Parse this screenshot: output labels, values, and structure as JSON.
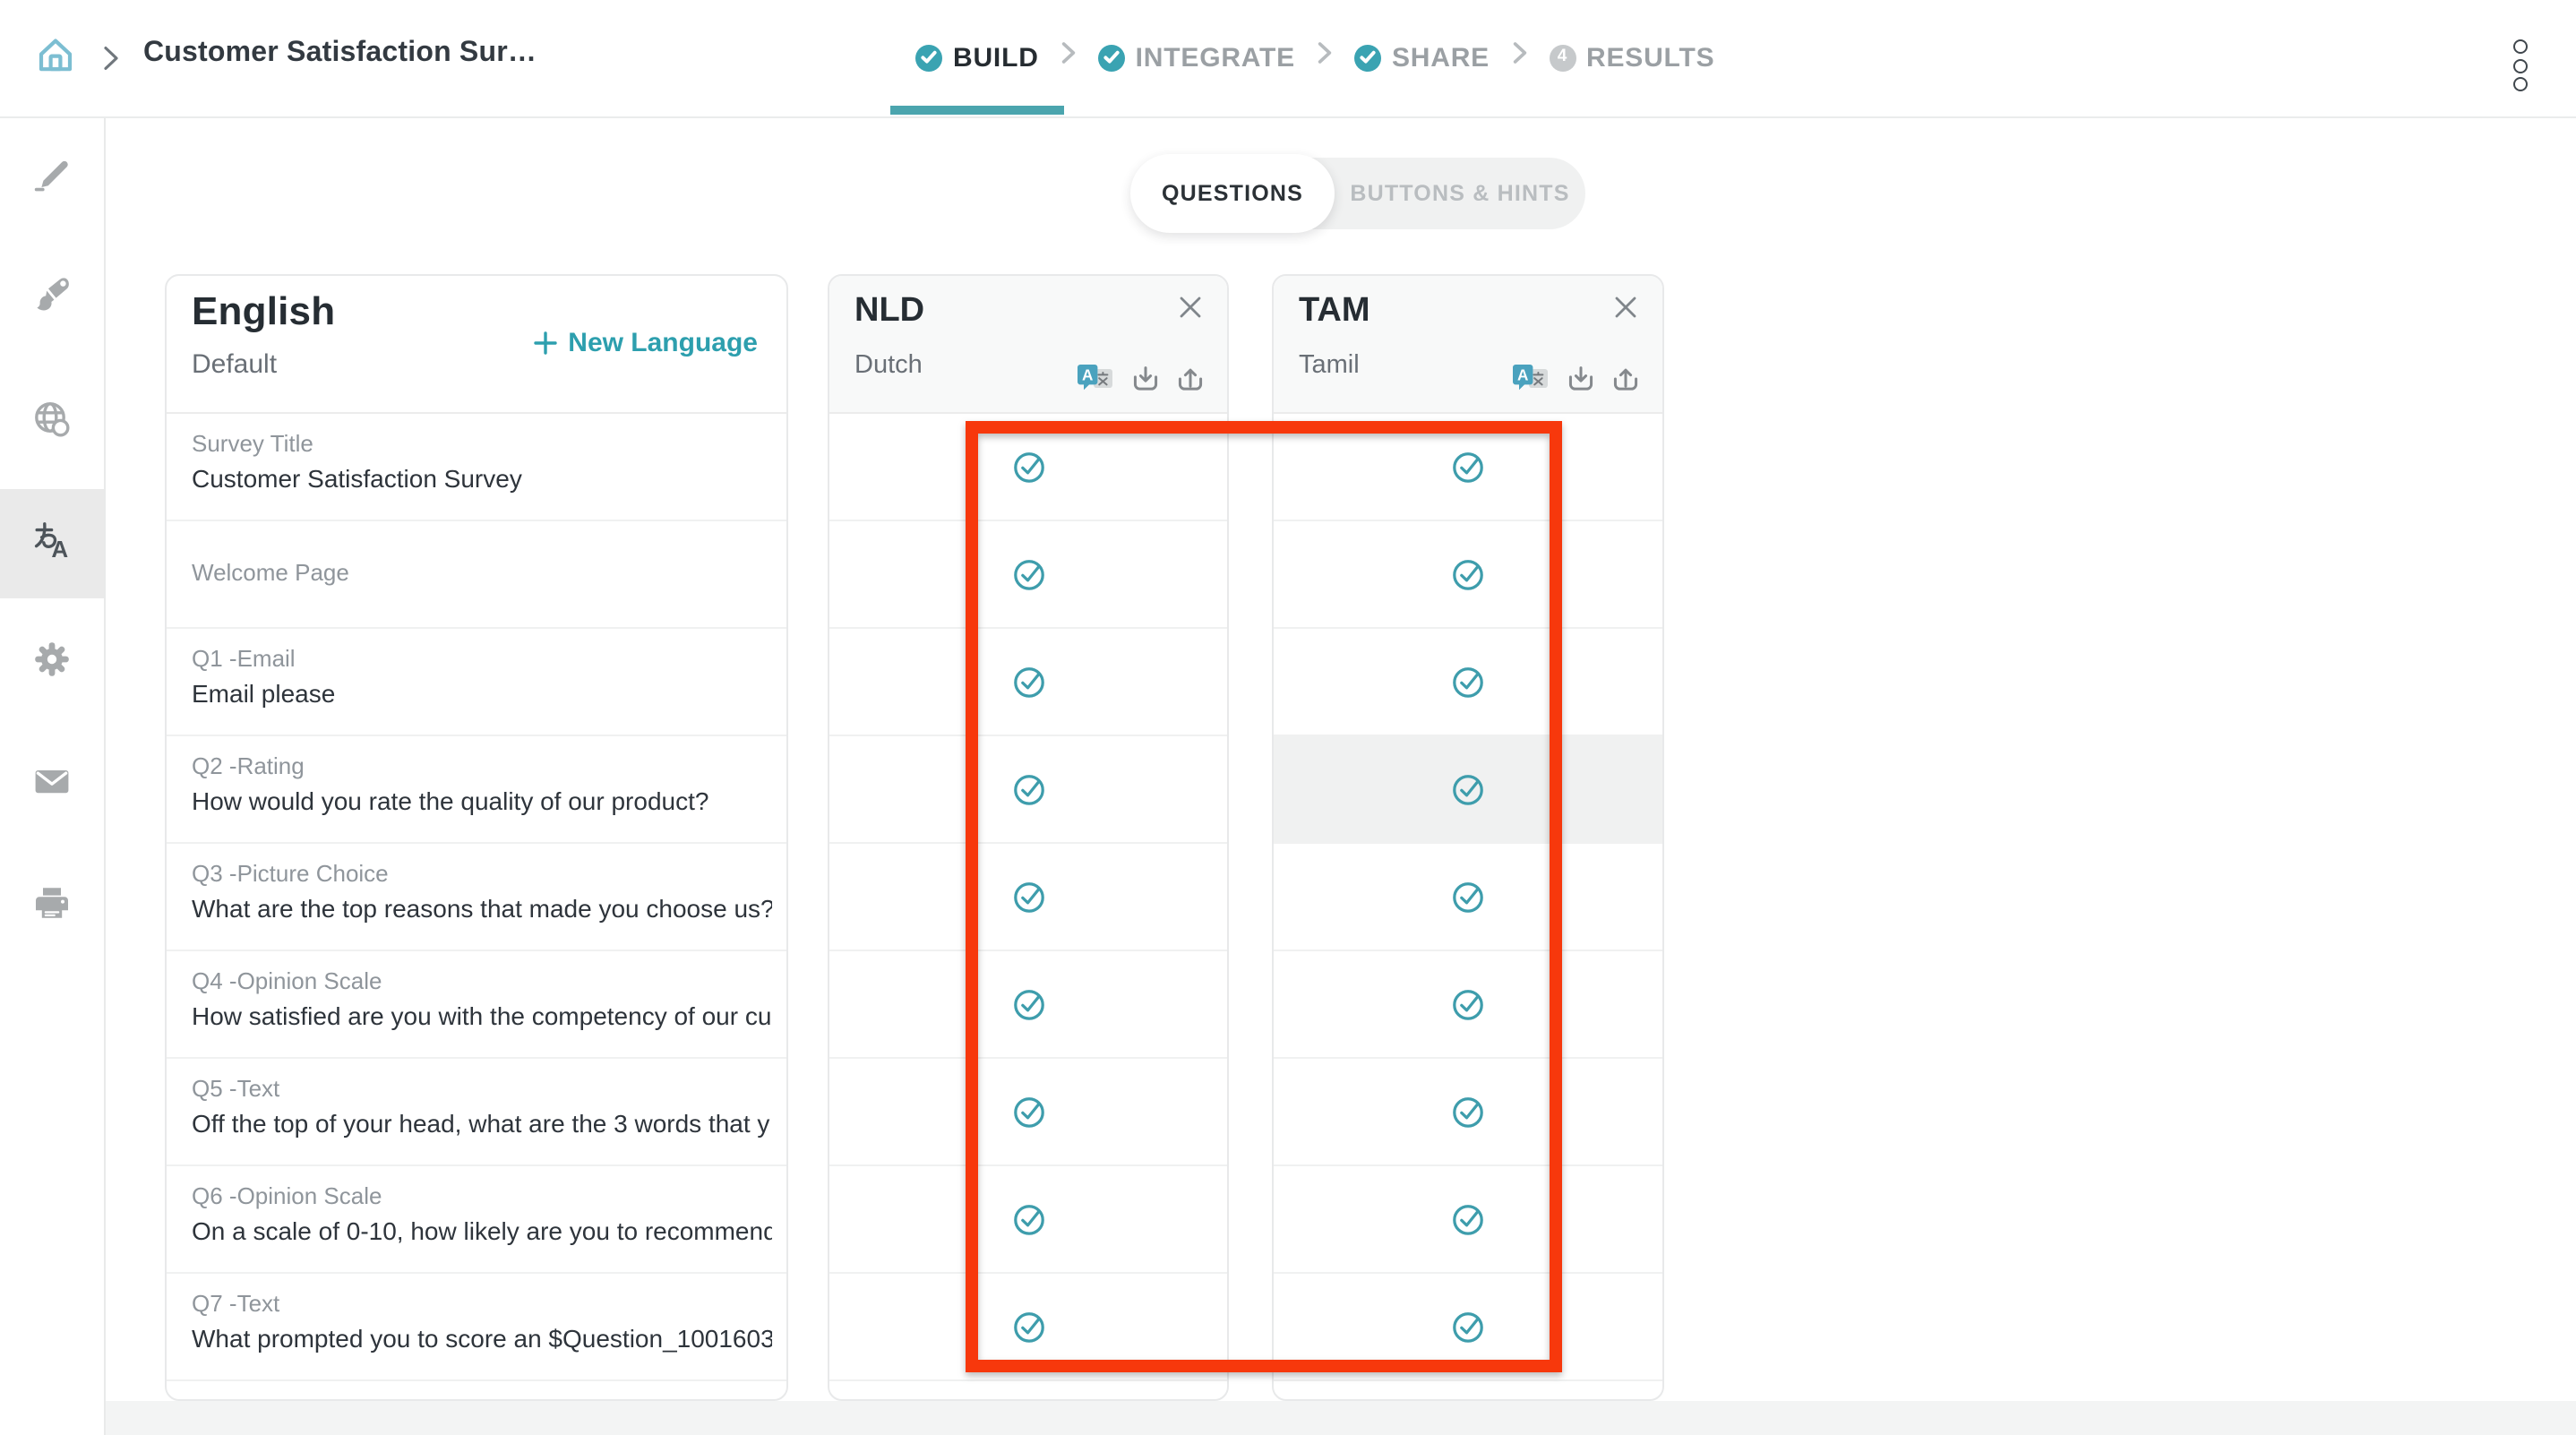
{
  "header": {
    "breadcrumb": "Customer Satisfaction Sur…",
    "steps": [
      {
        "label": "BUILD",
        "status": "completed-active"
      },
      {
        "label": "INTEGRATE",
        "status": "completed"
      },
      {
        "label": "SHARE",
        "status": "completed"
      },
      {
        "label": "RESULTS",
        "status": "pending",
        "badge": "4"
      }
    ]
  },
  "sidebar": {
    "items": [
      {
        "icon": "pen"
      },
      {
        "icon": "paintbrush"
      },
      {
        "icon": "globe"
      },
      {
        "icon": "translate",
        "active": true
      },
      {
        "icon": "gear"
      },
      {
        "icon": "mail"
      },
      {
        "icon": "printer"
      }
    ]
  },
  "tabs": {
    "items": [
      {
        "label": "QUESTIONS",
        "active": true
      },
      {
        "label": "BUTTONS & HINTS",
        "active": false
      }
    ]
  },
  "base_column": {
    "title": "English",
    "subtitle": "Default",
    "action_label": "New Language"
  },
  "rows": [
    {
      "label": "Survey Title",
      "value": "Customer Satisfaction Survey"
    },
    {
      "label": "Welcome Page",
      "value": ""
    },
    {
      "label": "Q1 -Email",
      "value": "Email please"
    },
    {
      "label": "Q2 -Rating",
      "value": "How would you rate the quality of our product?"
    },
    {
      "label": "Q3 -Picture Choice",
      "value": "What are the top reasons that made you choose us?"
    },
    {
      "label": "Q4 -Opinion Scale",
      "value": "How satisfied are you with the competency of our cu…"
    },
    {
      "label": "Q5 -Text",
      "value": "Off the top of your head, what are the 3 words that y…"
    },
    {
      "label": "Q6 -Opinion Scale",
      "value": "On a scale of 0-10, how likely are you to recommend …"
    },
    {
      "label": "Q7 -Text",
      "value": "What prompted you to score an $Question_1001603…"
    }
  ],
  "languages": [
    {
      "code": "NLD",
      "name": "Dutch",
      "translated": [
        true,
        true,
        true,
        true,
        true,
        true,
        true,
        true,
        true
      ]
    },
    {
      "code": "TAM",
      "name": "Tamil",
      "translated": [
        true,
        true,
        true,
        true,
        true,
        true,
        true,
        true,
        true
      ],
      "highlighted_row": 3
    }
  ],
  "colors": {
    "brand_teal": "#3AA3B2",
    "underline_teal": "#4BA5AE",
    "home_teal": "#7CBED2",
    "link_teal": "#2D9FAE",
    "check_teal": "#3E9DAC",
    "annotation_red": "#F7380C",
    "row_highlight": "#F0F1F1",
    "pending_step_gray": "#C6C9CB"
  }
}
